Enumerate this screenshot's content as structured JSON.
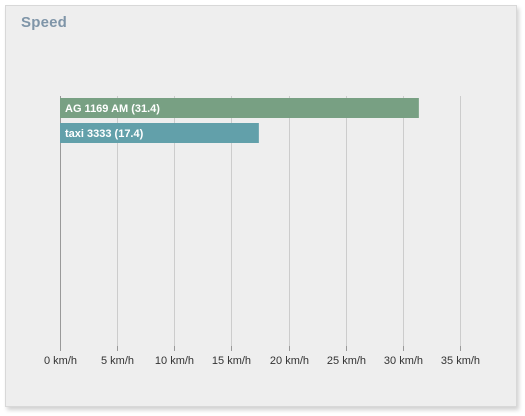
{
  "panel": {
    "title": "Speed"
  },
  "chart_data": {
    "type": "bar",
    "orientation": "horizontal",
    "title": "Speed",
    "xlabel": "",
    "ylabel": "",
    "xlim": [
      0,
      35
    ],
    "ticks": [
      0,
      5,
      10,
      15,
      20,
      25,
      30,
      35
    ],
    "tick_labels": [
      "0 km/h",
      "5 km/h",
      "10 km/h",
      "15 km/h",
      "20 km/h",
      "25 km/h",
      "30 km/h",
      "35 km/h"
    ],
    "grid": true,
    "categories": [
      "AG 1169 AM",
      "taxi 3333"
    ],
    "values": [
      31.4,
      17.4
    ],
    "bar_labels": [
      "AG 1169 AM (31.4)",
      "taxi 3333 (17.4)"
    ],
    "colors": [
      "#78a083",
      "#62a0aa"
    ]
  }
}
